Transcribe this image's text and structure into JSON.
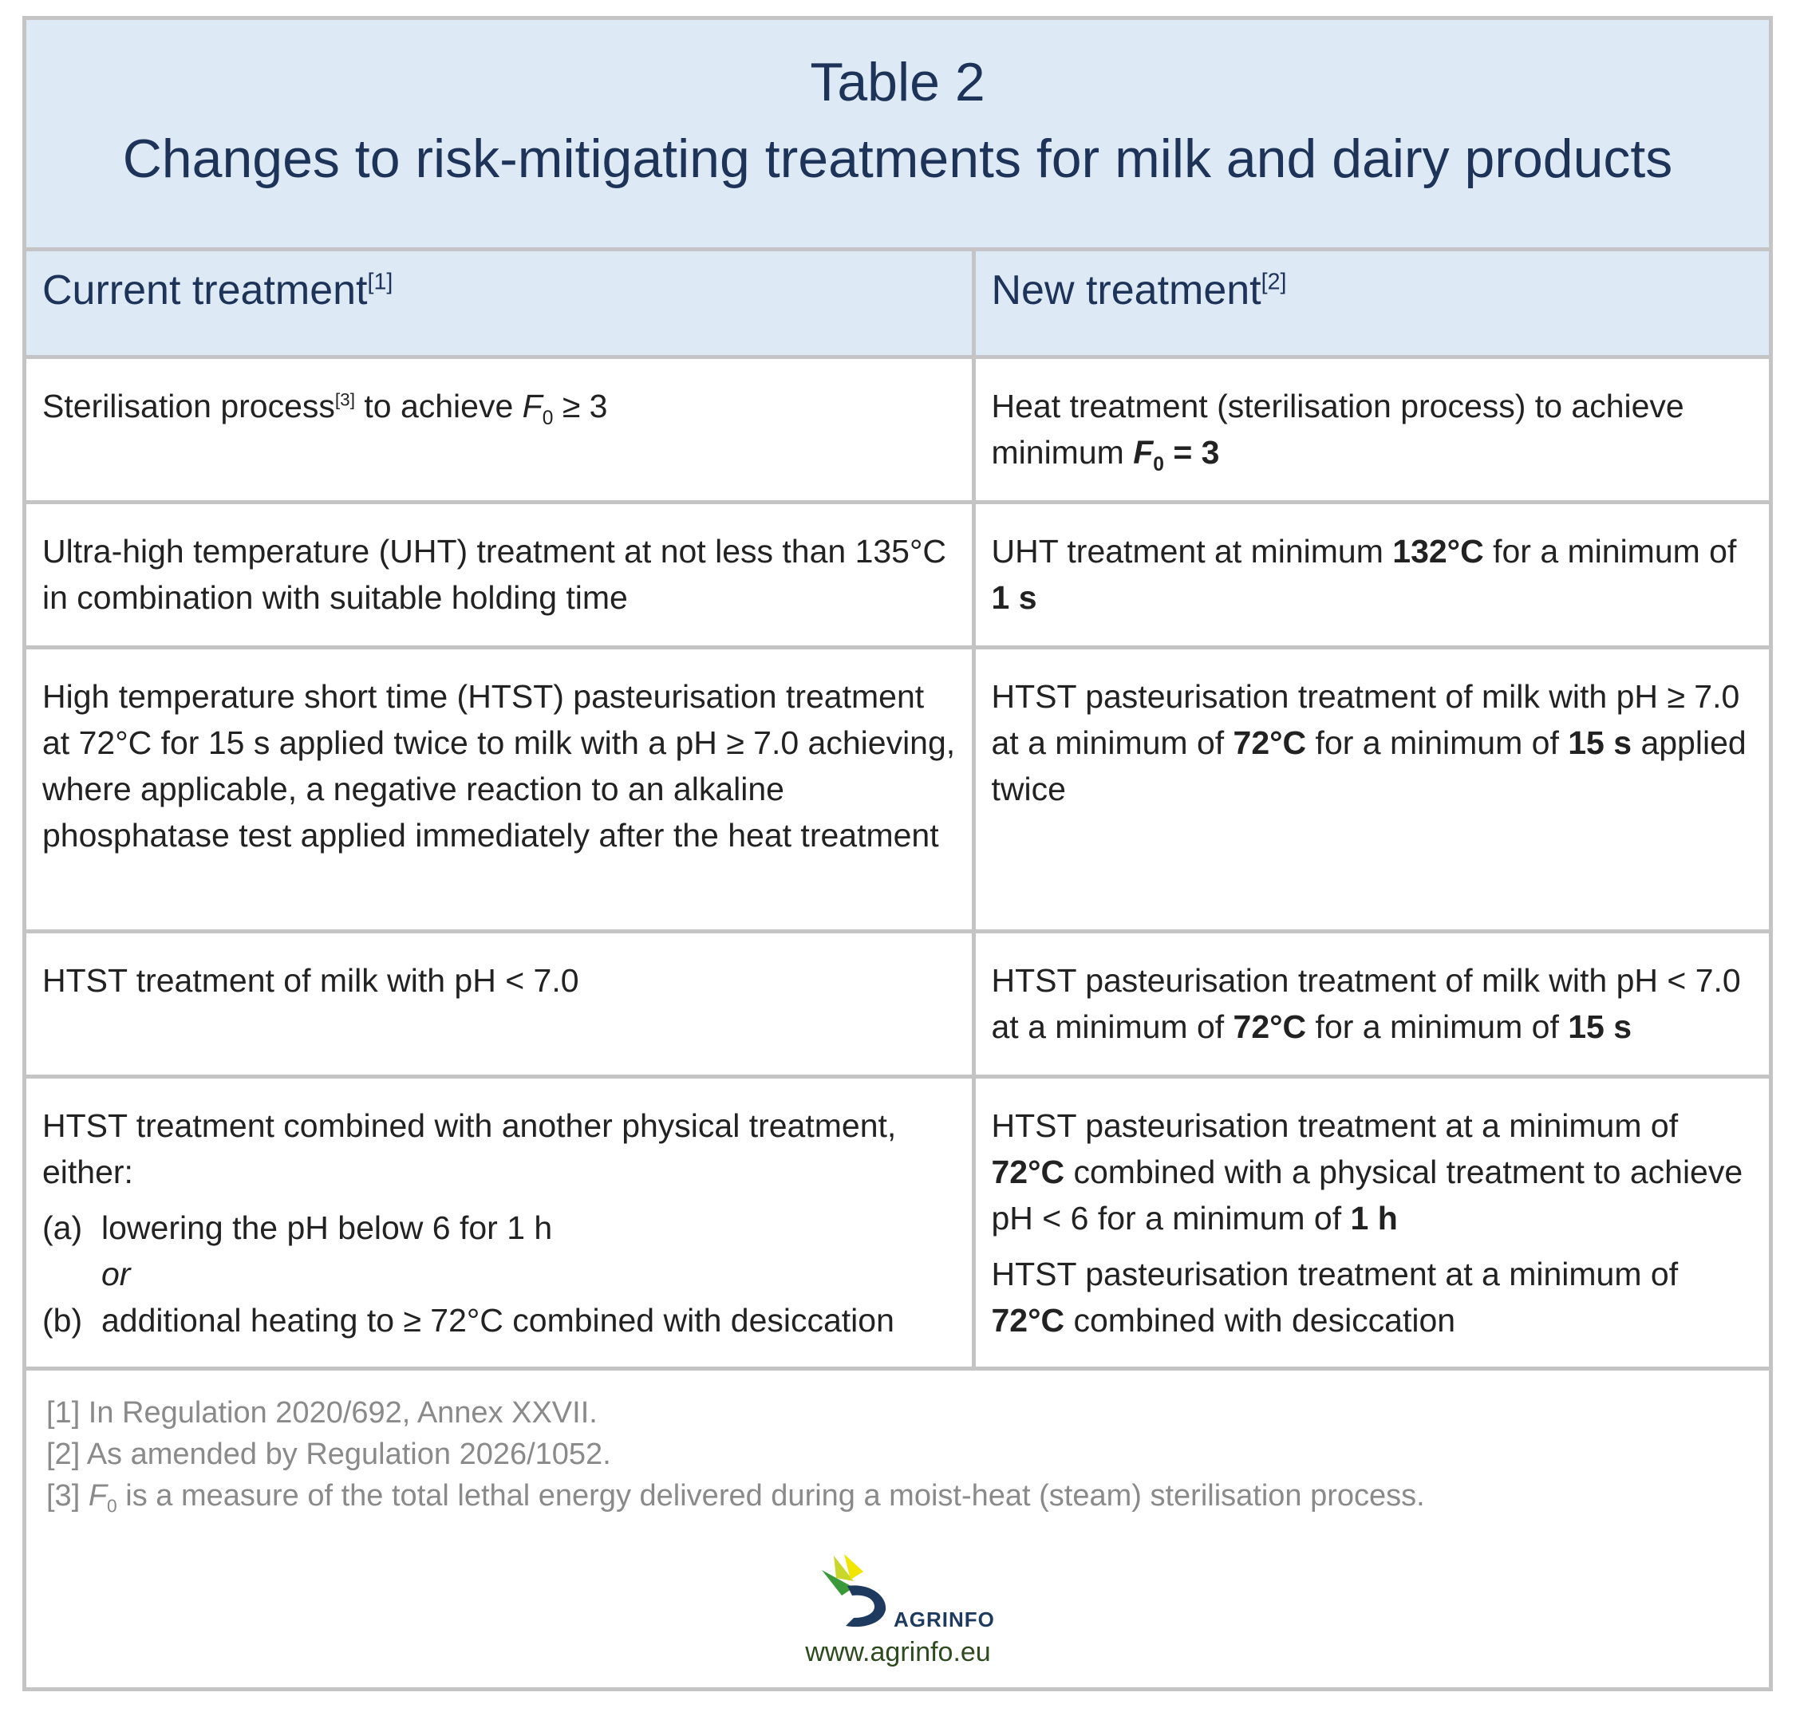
{
  "title": {
    "line1": "Table 2",
    "line2": "Changes to risk-mitigating treatments for milk and dairy products"
  },
  "headers": {
    "current": "Current treatment",
    "current_ref": "[1]",
    "new": "New treatment",
    "new_ref": "[2]"
  },
  "rows": [
    {
      "current": {
        "a": "Sterilisation process",
        "ref": "[3]",
        "b": " to achieve ",
        "f": "F",
        "sub": "0",
        "c": " ≥ 3"
      },
      "new": {
        "a": "Heat treatment (sterilisation process) to achieve minimum ",
        "f": "F",
        "sub": "0",
        "b": " = 3"
      }
    },
    {
      "current": "Ultra-high temperature (UHT) treatment at not less than 135°C in combination with suitable holding time",
      "new": {
        "a": "UHT treatment at minimum ",
        "b1": "132°C",
        "c": " for a minimum of ",
        "b2": "1 s"
      }
    },
    {
      "current": "High temperature short time (HTST) pasteurisation treatment at 72°C for 15 s applied twice to milk with a pH ≥ 7.0 achieving, where applicable, a negative reaction to an alkaline phosphatase test applied immediately after the heat treatment",
      "new": {
        "a": "HTST pasteurisation treatment of milk with pH ≥ 7.0 at a minimum of ",
        "b1": "72°C",
        "c": " for a minimum of ",
        "b2": "15 s",
        "d": " applied twice"
      }
    },
    {
      "current": "HTST treatment of milk with pH < 7.0",
      "new": {
        "a": "HTST pasteurisation treatment of milk with pH < 7.0 at a minimum of ",
        "b1": "72°C",
        "c": " for a minimum of ",
        "b2": "15 s"
      }
    },
    {
      "current": {
        "intro": "HTST treatment combined with another physical treatment, either:",
        "opt_a_label": "(a)",
        "opt_a": "lowering the pH below 6 for 1 h",
        "or": "or",
        "opt_b_label": "(b)",
        "opt_b": "additional heating to ≥ 72°C combined with desiccation"
      },
      "new": {
        "p1_a": "HTST pasteurisation treatment at a minimum of ",
        "p1_b1": "72°C",
        "p1_c": " combined with a physical treatment to achieve pH < 6 for a minimum of ",
        "p1_b2": "1 h",
        "p2_a": "HTST pasteurisation treatment at a minimum of ",
        "p2_b": "72°C",
        "p2_c": " combined with desiccation"
      }
    }
  ],
  "notes": {
    "n1": "[1] In Regulation 2020/692, Annex XXVII.",
    "n2": "[2] As amended by Regulation 2026/1052.",
    "n3_a": "[3] ",
    "n3_f": "F",
    "n3_sub": "0",
    "n3_b": " is a measure of the total lethal energy delivered during a moist-heat (steam) sterilisation process."
  },
  "logo": {
    "icon": "agrinfo-logo-icon",
    "text": "AGRINFO"
  },
  "url": "www.agrinfo.eu",
  "colors": {
    "header_bg": "#dde9f5",
    "title_text": "#1e3358",
    "border": "#c4c4c4",
    "notes_text": "#8a8a8a"
  }
}
